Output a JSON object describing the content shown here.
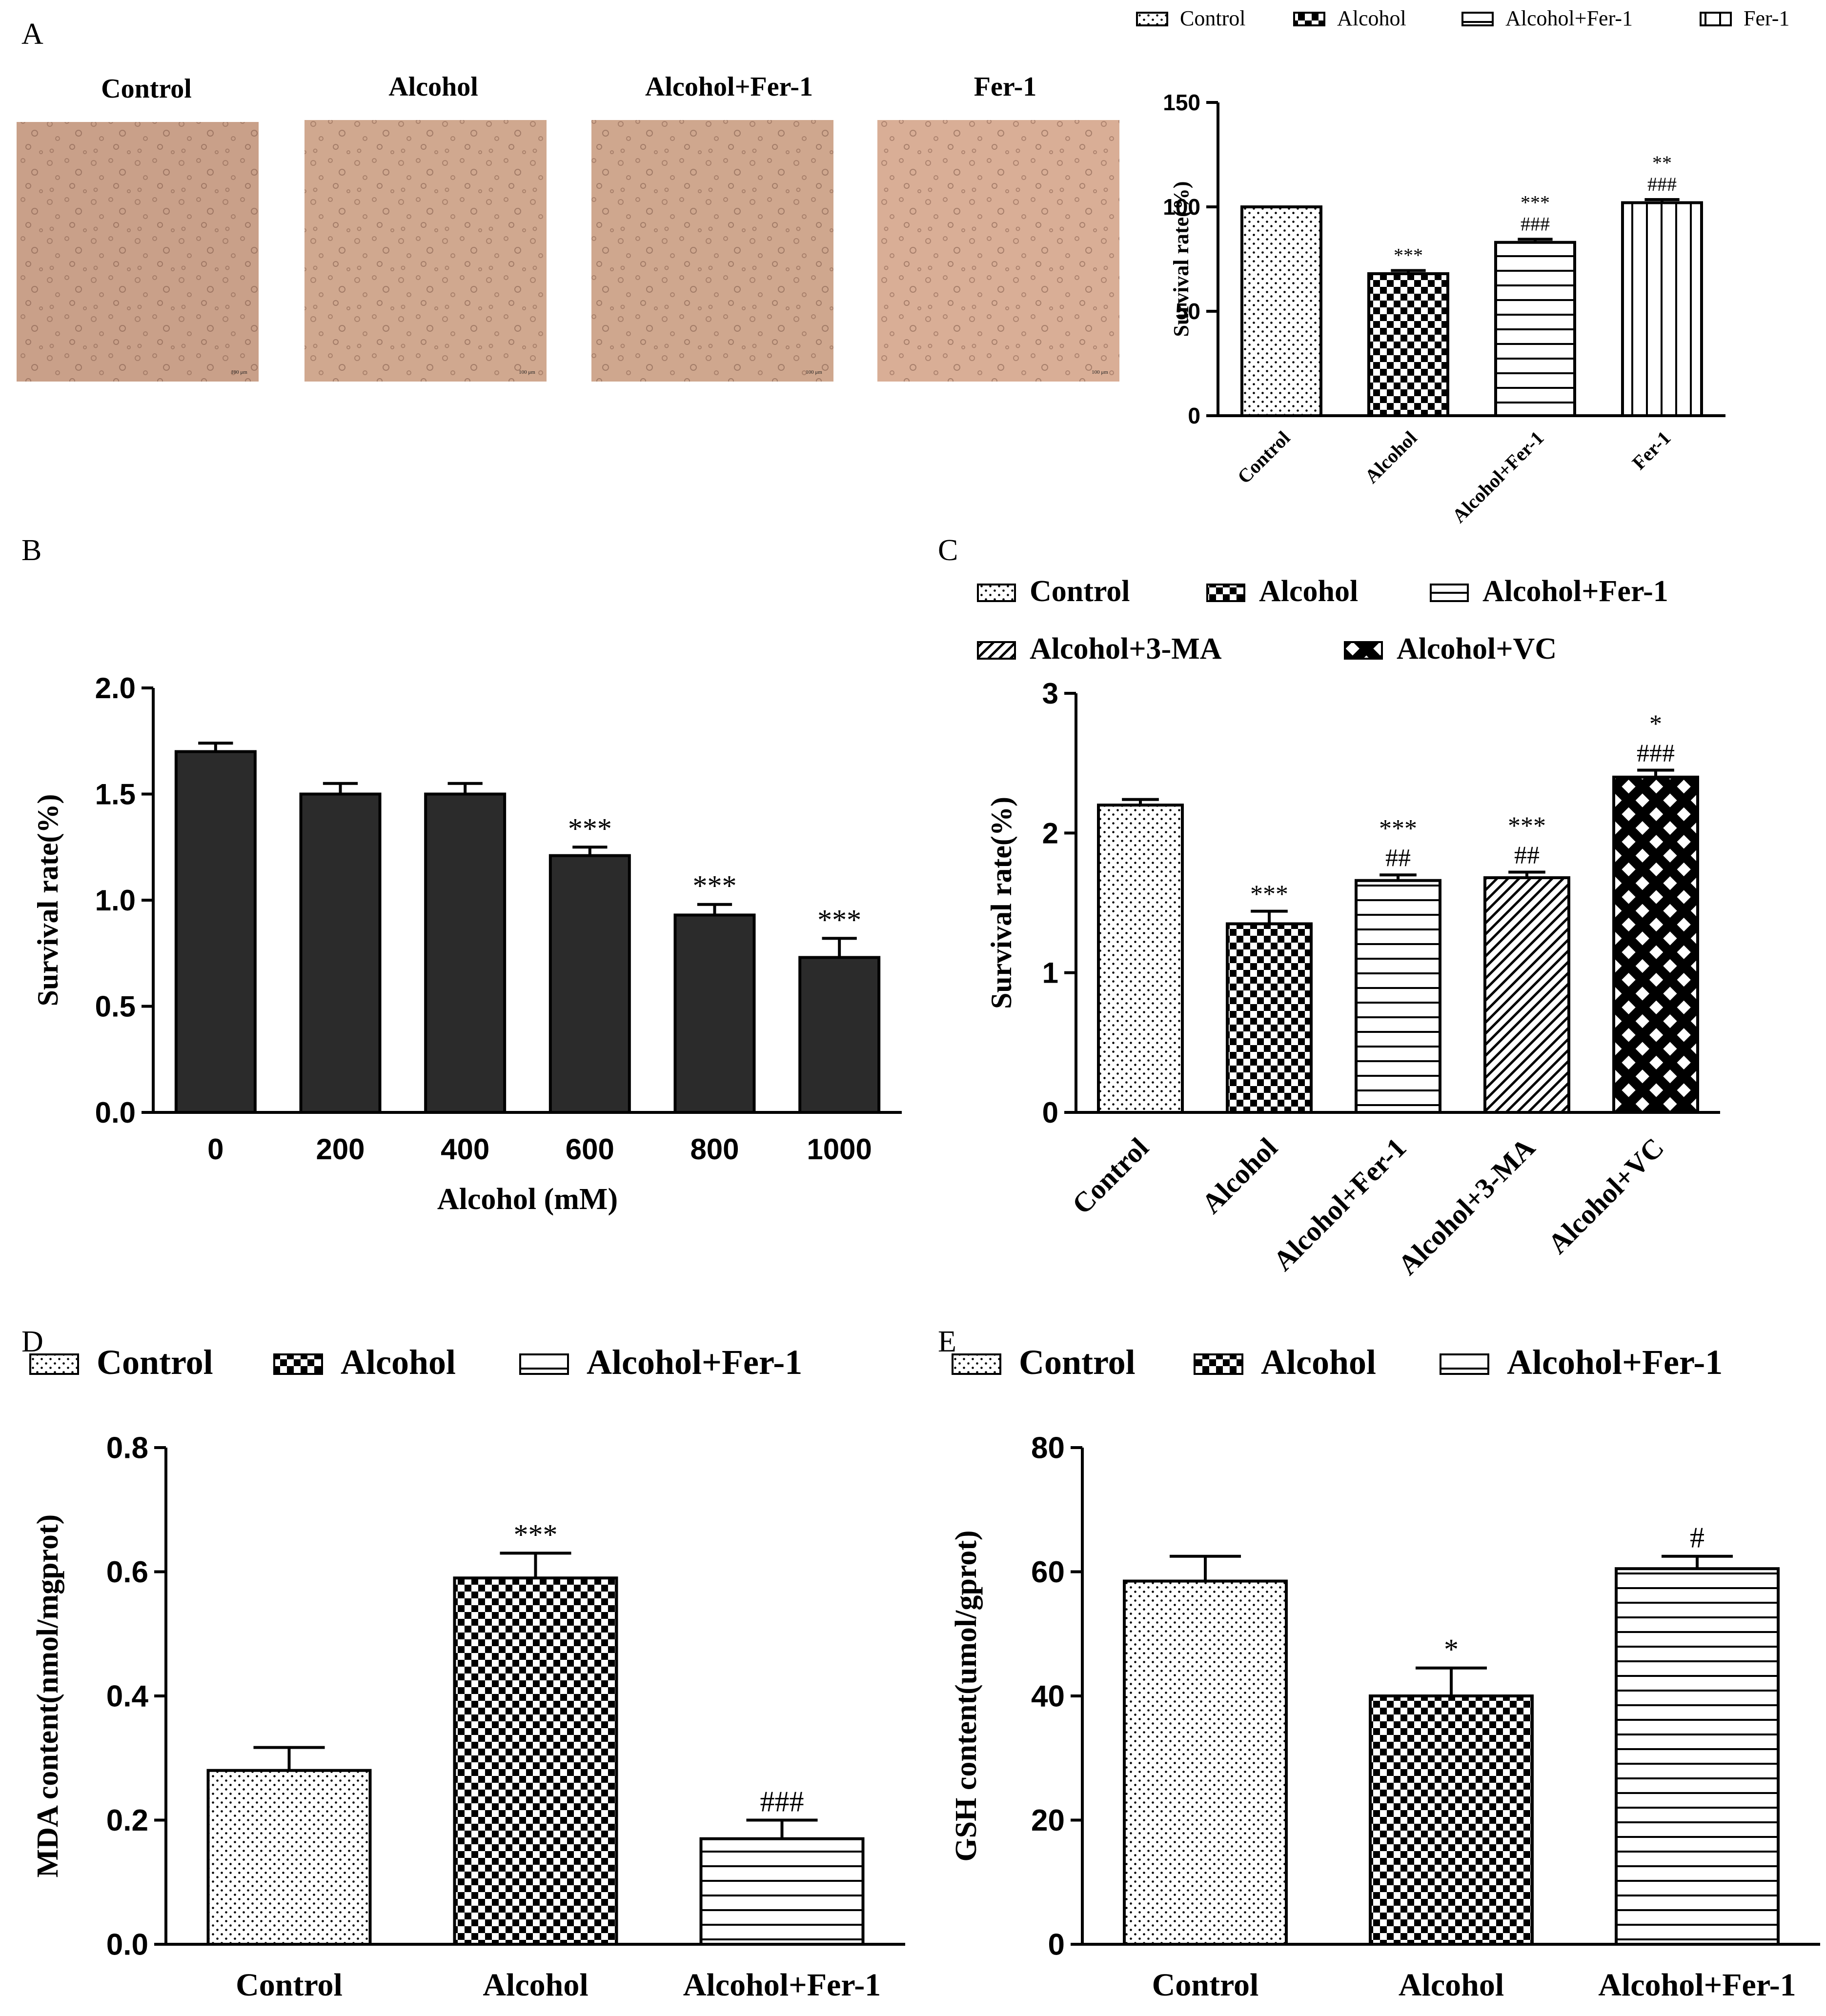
{
  "figure": {
    "panels": [
      {
        "key": "A",
        "label": "A"
      },
      {
        "key": "B",
        "label": "B"
      },
      {
        "key": "C",
        "label": "C"
      },
      {
        "key": "D",
        "label": "D"
      },
      {
        "key": "E",
        "label": "E"
      }
    ],
    "micrographs": [
      {
        "title": "Control",
        "tone": "#c9a089",
        "scale_label": "100 μm"
      },
      {
        "title": "Alcohol",
        "tone": "#d0a88f",
        "scale_label": "100 μm"
      },
      {
        "title": "Alcohol+Fer-1",
        "tone": "#cfa78e",
        "scale_label": "100 μm"
      },
      {
        "title": "Fer-1",
        "tone": "#d9ae96",
        "scale_label": "100 μm"
      }
    ],
    "colors": {
      "bar_dark": "#2b2b2b",
      "axis": "#000000",
      "micrograph_base": "#cfa58d"
    }
  },
  "chart_data": [
    {
      "id": "A",
      "type": "bar",
      "title": "",
      "xlabel": "",
      "ylabel": "Survival rate(%)",
      "categories": [
        "Control",
        "Alcohol",
        "Alcohol+Fer-1",
        "Fer-1"
      ],
      "values": [
        100,
        68,
        83,
        102
      ],
      "errors": [
        0,
        1.5,
        1.5,
        1.5
      ],
      "patterns": [
        "dots",
        "checker",
        "hlines",
        "vlines"
      ],
      "annotations": [
        [],
        [
          "***"
        ],
        [
          "###",
          "***"
        ],
        [
          "###",
          "**"
        ]
      ],
      "legend": [
        "Control",
        "Alcohol",
        "Alcohol+Fer-1",
        "Fer-1"
      ],
      "ylim": [
        0,
        150
      ],
      "yticks": [
        "0",
        "50",
        "100",
        "150"
      ],
      "ytick_values": [
        0,
        50,
        100,
        150
      ],
      "xtick_rotation": -45
    },
    {
      "id": "B",
      "type": "bar",
      "title": "",
      "xlabel": "Alcohol (mM)",
      "ylabel": "Survival rate(%)",
      "categories": [
        "0",
        "200",
        "400",
        "600",
        "800",
        "1000"
      ],
      "values": [
        1.7,
        1.5,
        1.5,
        1.21,
        0.93,
        0.73
      ],
      "errors": [
        0.04,
        0.05,
        0.05,
        0.04,
        0.05,
        0.09
      ],
      "patterns": [
        "solid",
        "solid",
        "solid",
        "solid",
        "solid",
        "solid"
      ],
      "annotations": [
        [],
        [],
        [],
        [
          "***"
        ],
        [
          "***"
        ],
        [
          "***"
        ]
      ],
      "legend": [],
      "ylim": [
        0,
        2.0
      ],
      "yticks": [
        "0.0",
        "0.5",
        "1.0",
        "1.5",
        "2.0"
      ],
      "ytick_values": [
        0,
        0.5,
        1.0,
        1.5,
        2.0
      ],
      "xtick_rotation": 0
    },
    {
      "id": "C",
      "type": "bar",
      "title": "",
      "xlabel": "",
      "ylabel": "Survival rate(%)",
      "categories": [
        "Control",
        "Alcohol",
        "Alcohol+Fer-1",
        "Alcohol+3-MA",
        "Alcohol+VC"
      ],
      "values": [
        2.2,
        1.35,
        1.66,
        1.68,
        2.4
      ],
      "errors": [
        0.04,
        0.09,
        0.04,
        0.04,
        0.05
      ],
      "patterns": [
        "dots",
        "checker",
        "hlines",
        "diag",
        "crosshatch"
      ],
      "annotations": [
        [],
        [
          "***"
        ],
        [
          "##",
          "***"
        ],
        [
          "##",
          "***"
        ],
        [
          "###",
          "*"
        ]
      ],
      "legend": [
        "Control",
        "Alcohol",
        "Alcohol+Fer-1",
        "Alcohol+3-MA",
        "Alcohol+VC"
      ],
      "ylim": [
        0,
        3
      ],
      "yticks": [
        "0",
        "1",
        "2",
        "3"
      ],
      "ytick_values": [
        0,
        1,
        2,
        3
      ],
      "xtick_rotation": -45
    },
    {
      "id": "D",
      "type": "bar",
      "title": "",
      "xlabel": "",
      "ylabel": "MDA content(nmol/mgprot)",
      "categories": [
        "Control",
        "Alcohol",
        "Alcohol+Fer-1"
      ],
      "values": [
        0.28,
        0.59,
        0.17
      ],
      "errors": [
        0.037,
        0.04,
        0.03
      ],
      "patterns": [
        "dots",
        "checker",
        "hlines"
      ],
      "annotations": [
        [],
        [
          "***"
        ],
        [
          "###"
        ]
      ],
      "legend": [
        "Control",
        "Alcohol",
        "Alcohol+Fer-1"
      ],
      "ylim": [
        0,
        0.8
      ],
      "yticks": [
        "0.0",
        "0.2",
        "0.4",
        "0.6",
        "0.8"
      ],
      "ytick_values": [
        0,
        0.2,
        0.4,
        0.6,
        0.8
      ],
      "xtick_rotation": 0
    },
    {
      "id": "E",
      "type": "bar",
      "title": "",
      "xlabel": "",
      "ylabel": "GSH content(umol/gprot)",
      "categories": [
        "Control",
        "Alcohol",
        "Alcohol+Fer-1"
      ],
      "values": [
        58.5,
        40,
        60.5
      ],
      "errors": [
        4,
        4.5,
        2
      ],
      "patterns": [
        "dots",
        "checker",
        "hlines"
      ],
      "annotations": [
        [],
        [
          "*"
        ],
        [
          "#"
        ]
      ],
      "legend": [
        "Control",
        "Alcohol",
        "Alcohol+Fer-1"
      ],
      "ylim": [
        0,
        80
      ],
      "yticks": [
        "0",
        "20",
        "40",
        "60",
        "80"
      ],
      "ytick_values": [
        0,
        20,
        40,
        60,
        80
      ],
      "xtick_rotation": 0
    }
  ]
}
